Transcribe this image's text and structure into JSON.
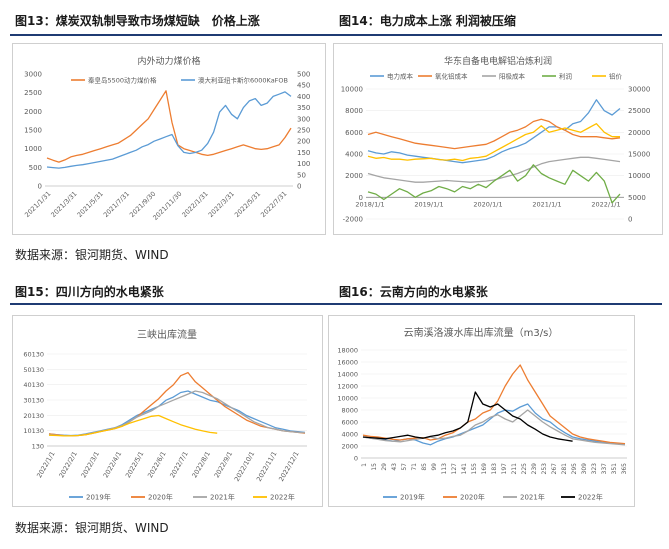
{
  "figures": {
    "f13_title": "图13：煤炭双轨制导致市场煤短缺　价格上涨",
    "f14_title": "图14：电力成本上涨 利润被压缩",
    "f15_title": "图15：四川方向的水电紧张",
    "f16_title": "图16：云南方向的水电紧张"
  },
  "sources": {
    "top": "数据来源：银河期货、WIND",
    "bottom": "数据来源：银河期货、WIND"
  },
  "colors": {
    "orange": "#ed7d31",
    "blue": "#5b9bd5",
    "gray": "#a5a5a5",
    "yellow": "#ffc000",
    "green": "#70ad47",
    "black": "#000000",
    "rule": "#1f3b73"
  },
  "chart_data": [
    {
      "id": "coal",
      "type": "line",
      "title": "内外动力煤价格",
      "x_labels": [
        "2021/1/31",
        "2021/3/31",
        "2021/5/31",
        "2021/7/31",
        "2021/9/30",
        "2021/11/30",
        "2022/1/31",
        "2022/3/31",
        "2022/5/31",
        "2022/7/31"
      ],
      "yleft_ticks": [
        "0",
        "500",
        "1000",
        "1500",
        "2000",
        "2500",
        "3000"
      ],
      "yright_ticks": [
        "0",
        "50",
        "100",
        "150",
        "200",
        "250",
        "300",
        "350",
        "400",
        "450",
        "500"
      ],
      "ylim_left": [
        0,
        3000
      ],
      "ylim_right": [
        0,
        500
      ],
      "series": [
        {
          "name": "秦皇岛5500动力煤价格",
          "axis": "left",
          "color": "#ed7d31",
          "values": [
            750,
            690,
            640,
            700,
            780,
            820,
            850,
            900,
            950,
            1000,
            1050,
            1100,
            1150,
            1250,
            1350,
            1500,
            1650,
            1800,
            2050,
            2300,
            2550,
            1700,
            1100,
            1000,
            950,
            900,
            850,
            820,
            850,
            900,
            950,
            1000,
            1050,
            1100,
            1050,
            1000,
            980,
            1000,
            1050,
            1100,
            1300,
            1550
          ]
        },
        {
          "name": "澳大利亚纽卡斯尔6000KaFOB",
          "axis": "right",
          "color": "#5b9bd5",
          "values": [
            85,
            82,
            80,
            83,
            88,
            92,
            95,
            100,
            105,
            110,
            115,
            120,
            130,
            140,
            150,
            160,
            175,
            185,
            200,
            210,
            220,
            230,
            180,
            150,
            145,
            150,
            160,
            190,
            240,
            330,
            360,
            320,
            300,
            350,
            380,
            390,
            360,
            370,
            400,
            410,
            420,
            400
          ]
        }
      ]
    },
    {
      "id": "aluminum",
      "type": "line",
      "title": "华东自备电电解铝冶炼利润",
      "x_labels": [
        "2018/1/1",
        "2019/1/1",
        "2020/1/1",
        "2021/1/1",
        "2022/1/1"
      ],
      "yleft_ticks": [
        "-2000",
        "0",
        "2000",
        "4000",
        "6000",
        "8000",
        "10000"
      ],
      "yright_ticks": [
        "0",
        "5000",
        "10000",
        "15000",
        "20000",
        "25000",
        "30000"
      ],
      "ylim_left": [
        -2000,
        10000
      ],
      "ylim_right": [
        0,
        30000
      ],
      "series": [
        {
          "name": "电力成本",
          "axis": "left",
          "color": "#5b9bd5",
          "values": [
            4300,
            4100,
            4000,
            4200,
            4100,
            3900,
            3800,
            3700,
            3600,
            3500,
            3400,
            3300,
            3200,
            3300,
            3400,
            3500,
            3800,
            4200,
            4500,
            4700,
            5000,
            5500,
            6000,
            6500,
            6500,
            6200,
            6800,
            7000,
            7800,
            9000,
            8000,
            7600,
            8200
          ]
        },
        {
          "name": "氧化铝成本",
          "axis": "left",
          "color": "#ed7d31",
          "values": [
            5800,
            6000,
            5800,
            5600,
            5400,
            5200,
            5000,
            4900,
            4800,
            4700,
            4600,
            4500,
            4600,
            4700,
            4800,
            4900,
            5200,
            5600,
            6000,
            6200,
            6500,
            7000,
            7200,
            7000,
            6500,
            6200,
            5800,
            5600,
            5600,
            5600,
            5500,
            5400,
            5500
          ]
        },
        {
          "name": "阳极成本",
          "axis": "left",
          "color": "#a5a5a5",
          "values": [
            2200,
            2000,
            1800,
            1700,
            1600,
            1500,
            1400,
            1400,
            1450,
            1500,
            1550,
            1500,
            1450,
            1400,
            1450,
            1500,
            1600,
            1800,
            2000,
            2200,
            2500,
            2800,
            3100,
            3300,
            3400,
            3500,
            3600,
            3700,
            3700,
            3600,
            3500,
            3400,
            3300
          ]
        },
        {
          "name": "利润",
          "axis": "left",
          "color": "#70ad47",
          "values": [
            500,
            300,
            -200,
            300,
            800,
            500,
            0,
            400,
            600,
            1000,
            800,
            500,
            1000,
            800,
            1200,
            900,
            1500,
            2000,
            2500,
            1500,
            2000,
            3000,
            2200,
            1800,
            1500,
            1200,
            2500,
            2000,
            1500,
            2300,
            1500,
            -500,
            300
          ]
        },
        {
          "name": "铝价",
          "axis": "right",
          "color": "#ffc000",
          "values": [
            14500,
            14000,
            14200,
            13800,
            13800,
            13600,
            13800,
            13900,
            14000,
            13700,
            13600,
            13800,
            13500,
            14000,
            14200,
            14500,
            15500,
            16500,
            17500,
            18500,
            19500,
            20000,
            21500,
            20000,
            20500,
            21000,
            20500,
            20000,
            21000,
            22000,
            20000,
            19000,
            19000
          ]
        }
      ]
    },
    {
      "id": "sanxia",
      "type": "line",
      "title": "三峡出库流量",
      "x_labels": [
        "2022/1/1",
        "2022/2/1",
        "2022/3/1",
        "2022/4/1",
        "2022/5/1",
        "2022/6/1",
        "2022/7/1",
        "2022/8/1",
        "2022/9/1",
        "2022/10/1",
        "2022/11/1",
        "2022/12/1"
      ],
      "y_ticks": [
        "130",
        "10130",
        "20130",
        "30130",
        "40130",
        "50130",
        "60130"
      ],
      "ylim": [
        130,
        60130
      ],
      "legend": [
        "2019年",
        "2020年",
        "2021年",
        "2022年"
      ],
      "series": [
        {
          "name": "2019年",
          "color": "#5b9bd5",
          "values": [
            8000,
            7500,
            7200,
            7000,
            7200,
            8000,
            9000,
            10000,
            11000,
            12000,
            14000,
            17000,
            20000,
            22000,
            24000,
            26000,
            30000,
            32000,
            35000,
            36000,
            34000,
            32000,
            30000,
            29000,
            27000,
            25000,
            23000,
            20000,
            18000,
            16000,
            14000,
            12000,
            11000,
            10000,
            9500,
            9000
          ]
        },
        {
          "name": "2020年",
          "color": "#ed7d31",
          "values": [
            8000,
            7500,
            7000,
            6800,
            7000,
            7500,
            8500,
            9500,
            10500,
            11500,
            13000,
            16000,
            19000,
            23000,
            27000,
            31000,
            36000,
            40000,
            46000,
            48000,
            42000,
            38000,
            34000,
            30000,
            26000,
            23000,
            20000,
            17000,
            15000,
            13000,
            12000,
            11000,
            10000,
            9500,
            9000,
            8500
          ]
        },
        {
          "name": "2021年",
          "color": "#a5a5a5",
          "values": [
            7500,
            7200,
            7000,
            6900,
            7000,
            7800,
            8800,
            9800,
            10800,
            12000,
            13500,
            16000,
            19000,
            21000,
            23000,
            26000,
            28000,
            30000,
            32000,
            34000,
            36000,
            35000,
            33000,
            31000,
            28000,
            25000,
            22000,
            19000,
            16000,
            14000,
            12000,
            11000,
            10000,
            9500,
            9000,
            8800
          ]
        },
        {
          "name": "2022年",
          "color": "#ffc000",
          "values": [
            7200,
            7000,
            6800,
            6700,
            7000,
            7500,
            8500,
            9500,
            10500,
            11500,
            13000,
            15000,
            16500,
            18000,
            19500,
            20000,
            18000,
            16000,
            14000,
            12500,
            11000,
            10000,
            9000,
            8500
          ]
        }
      ]
    },
    {
      "id": "xiluodu",
      "type": "line",
      "title": "云南溪洛渡水库出库流量（m3/s）",
      "x_labels": [
        "1",
        "15",
        "29",
        "43",
        "57",
        "71",
        "85",
        "99",
        "113",
        "127",
        "141",
        "155",
        "169",
        "183",
        "197",
        "211",
        "225",
        "239",
        "253",
        "267",
        "281",
        "295",
        "309",
        "323",
        "337",
        "351",
        "365"
      ],
      "y_ticks": [
        "0",
        "2000",
        "4000",
        "6000",
        "8000",
        "10000",
        "12000",
        "14000",
        "16000",
        "18000"
      ],
      "ylim": [
        0,
        18000
      ],
      "legend": [
        "2019年",
        "2020年",
        "2021年",
        "2022年"
      ],
      "series": [
        {
          "name": "2019年",
          "color": "#5b9bd5",
          "values": [
            3500,
            3300,
            3200,
            3000,
            2800,
            3000,
            3200,
            3000,
            2500,
            2200,
            2800,
            3200,
            3500,
            4000,
            4500,
            5000,
            5500,
            6500,
            7500,
            8000,
            7800,
            8500,
            9000,
            7500,
            6500,
            6000,
            5000,
            4200,
            3500,
            3200,
            3000,
            2800,
            2600,
            2500,
            2400,
            2300
          ]
        },
        {
          "name": "2020年",
          "color": "#ed7d31",
          "values": [
            3800,
            3600,
            3500,
            3300,
            3100,
            3000,
            3200,
            3300,
            3400,
            3000,
            3200,
            3800,
            4200,
            5000,
            6000,
            6500,
            7500,
            8000,
            9500,
            12000,
            14000,
            15500,
            13000,
            11000,
            9000,
            7000,
            6000,
            5000,
            4000,
            3500,
            3200,
            3000,
            2800,
            2600,
            2500,
            2400
          ]
        },
        {
          "name": "2021年",
          "color": "#a5a5a5",
          "values": [
            3500,
            3300,
            3100,
            2900,
            2800,
            2700,
            2900,
            3100,
            3300,
            3500,
            3200,
            3300,
            3600,
            3800,
            4500,
            5500,
            6000,
            6800,
            7200,
            6500,
            6000,
            7000,
            8000,
            7000,
            6000,
            5200,
            4500,
            3800,
            3200,
            3000,
            2800,
            2600,
            2500,
            2400,
            2300,
            2200
          ]
        },
        {
          "name": "2022年",
          "color": "#000000",
          "values": [
            3500,
            3400,
            3300,
            3200,
            3400,
            3600,
            3800,
            3500,
            3300,
            3600,
            3800,
            4200,
            4500,
            5000,
            6000,
            11000,
            9000,
            8500,
            9000,
            8000,
            7000,
            6500,
            5500,
            4800,
            4000,
            3500,
            3200,
            3000,
            2800
          ]
        }
      ]
    }
  ]
}
